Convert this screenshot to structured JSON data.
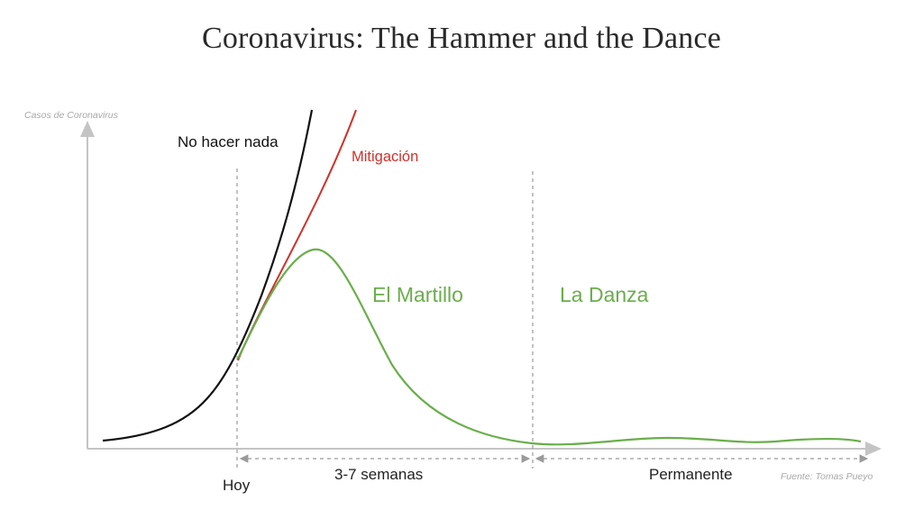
{
  "title": "Coronavirus: The Hammer and the Dance",
  "axis": {
    "y_label": "Casos de Coronavirus",
    "source": "Fuente: Tomas Pueyo"
  },
  "curves": {
    "nothing": {
      "label": "No hacer nada",
      "color": "#111111"
    },
    "mitigation": {
      "label": "Mitigación",
      "color": "#d0302a"
    },
    "hammer_dance": {
      "color": "#6aae4b"
    }
  },
  "phases": {
    "hammer": "El Martillo",
    "dance": "La Danza"
  },
  "timeline": {
    "today": "Hoy",
    "hammer_duration": "3-7 semanas",
    "dance_duration": "Permanente"
  },
  "colors": {
    "axis": "#c4c4c4",
    "dashed": "#9a9a9a",
    "muted_text": "#a8a8a8",
    "text": "#222222"
  }
}
